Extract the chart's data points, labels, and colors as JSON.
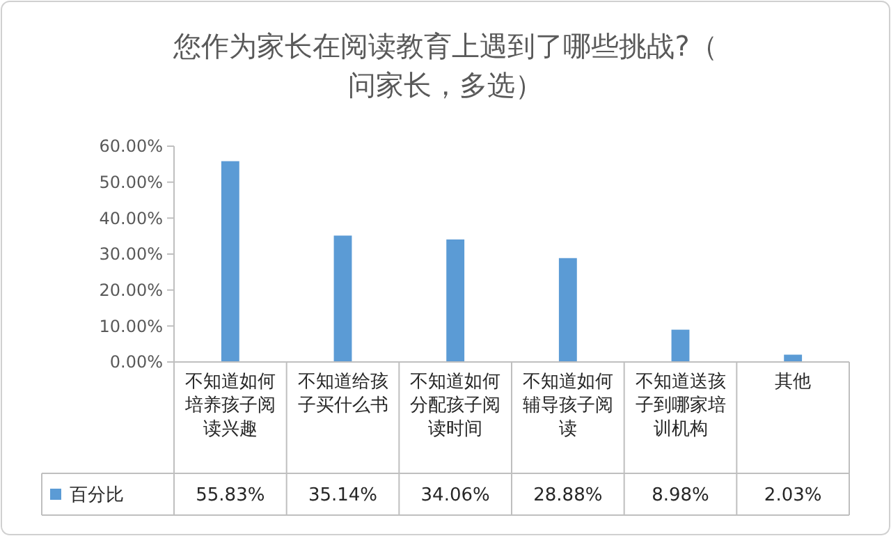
{
  "chart_data": {
    "type": "bar",
    "title": "您作为家长在阅读教育上遇到了哪些挑战?（问家长，多选）",
    "categories": [
      "不知道如何培养孩子阅读兴趣",
      "不知道给孩子买什么书",
      "不知道如何分配孩子阅读时间",
      "不知道如何辅导孩子阅读",
      "不知道送孩子到哪家培训机构",
      "其他"
    ],
    "series": [
      {
        "name": "百分比",
        "color": "#5b9bd5",
        "values": [
          55.83,
          35.14,
          34.06,
          28.88,
          8.98,
          2.03
        ],
        "value_labels": [
          "55.83%",
          "35.14%",
          "34.06%",
          "28.88%",
          "8.98%",
          "2.03%"
        ]
      }
    ],
    "ylim": [
      0,
      60
    ],
    "yticks": [
      {
        "value": 0,
        "label": "0.00%"
      },
      {
        "value": 10,
        "label": "10.00%"
      },
      {
        "value": 20,
        "label": "20.00%"
      },
      {
        "value": 30,
        "label": "30.00%"
      },
      {
        "value": 40,
        "label": "40.00%"
      },
      {
        "value": 50,
        "label": "50.00%"
      },
      {
        "value": 60,
        "label": "60.00%"
      }
    ],
    "legend": "bottom"
  }
}
